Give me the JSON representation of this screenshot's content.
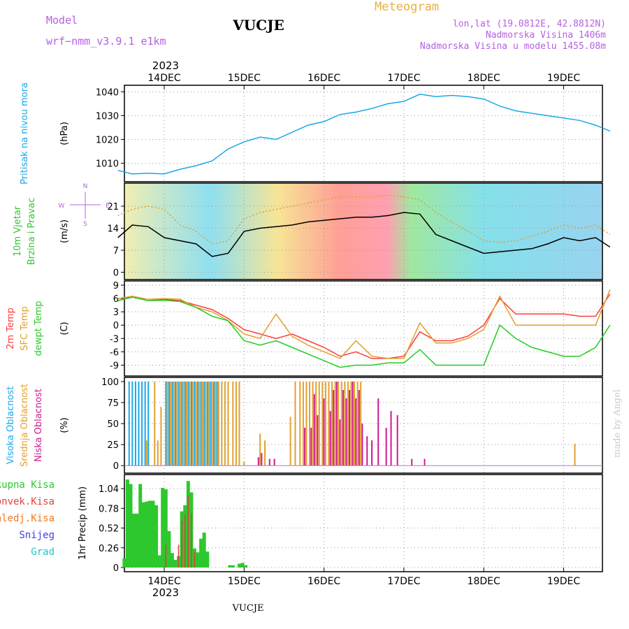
{
  "header": {
    "model_label": "Model",
    "model_name": "wrf−nmm_v3.9.1  e1km",
    "station": "VUCJE",
    "title": "Meteogram",
    "lonlat": "lon,lat (19.0812E, 42.8812N)",
    "elevation": "Nadmorska Visina 1406m",
    "model_elevation": "Nadmorska Visina u modelu 1455.08m",
    "year_top": "2023",
    "year_bottom": "2023",
    "footer_station": "VUCJE",
    "watermark": "made by Angel"
  },
  "colors": {
    "purple": "#b660e0",
    "gold": "#e8b040",
    "black": "#000000",
    "pressure": "#1aa8e8",
    "temp": "#ff3b3b",
    "sfc": "#e0a030",
    "dew": "#22cc22",
    "cloud_high": "#1aa8e8",
    "cloud_mid": "#e0a030",
    "cloud_low": "#d01890",
    "precip_total": "#2dc82d",
    "precip_conv": "#e04040",
    "precip_frz": "#f07820",
    "precip_snow": "#4040e0",
    "precip_grad": "#20c8c8"
  },
  "chart_data": [
    {
      "id": "pressure",
      "type": "line",
      "ylabel": "(hPa)",
      "side_labels": [
        "Pritisak na nivou mora"
      ],
      "x_ticks": [
        "14DEC",
        "15DEC",
        "16DEC",
        "17DEC",
        "18DEC",
        "19DEC"
      ],
      "y_ticks": [
        1010,
        1020,
        1030,
        1040
      ],
      "ylim": [
        1004,
        1041
      ],
      "x_days": [
        -0.58,
        -0.4,
        -0.2,
        0.0,
        0.2,
        0.4,
        0.6,
        0.8,
        1.0,
        1.2,
        1.4,
        1.6,
        1.8,
        2.0,
        2.2,
        2.4,
        2.6,
        2.8,
        3.0,
        3.2,
        3.4,
        3.6,
        3.8,
        4.0,
        4.2,
        4.4,
        4.6,
        4.8,
        5.0,
        5.2,
        5.4,
        5.58
      ],
      "series": [
        {
          "values": [
            1007,
            1005.5,
            1005.8,
            1005.5,
            1007.5,
            1009,
            1011,
            1016,
            1019,
            1021,
            1020,
            1023,
            1026,
            1027.5,
            1030.5,
            1031.5,
            1033,
            1035,
            1036,
            1039,
            1038,
            1038.5,
            1038,
            1037,
            1034,
            1032,
            1031,
            1030,
            1029,
            1028,
            1026,
            1023.5
          ]
        }
      ]
    },
    {
      "id": "wind",
      "type": "line",
      "ylabel": "(m/s)",
      "side_labels": [
        "10m Vjetar",
        "Brzina i Pravac"
      ],
      "compass": {
        "n": "N",
        "e": "E",
        "w": "W",
        "s": "S"
      },
      "y_ticks": [
        0,
        7,
        14,
        21
      ],
      "ylim": [
        -1,
        27
      ],
      "x_days": [
        -0.58,
        -0.4,
        -0.2,
        0.0,
        0.2,
        0.4,
        0.6,
        0.8,
        1.0,
        1.2,
        1.4,
        1.6,
        1.8,
        2.0,
        2.2,
        2.4,
        2.6,
        2.8,
        3.0,
        3.2,
        3.4,
        3.6,
        3.8,
        4.0,
        4.2,
        4.4,
        4.6,
        4.8,
        5.0,
        5.2,
        5.4,
        5.58
      ],
      "series": [
        {
          "values": [
            11,
            15,
            14.5,
            11,
            10,
            9,
            5,
            6,
            13,
            14,
            14.5,
            15,
            16,
            16.5,
            17,
            17.5,
            17.5,
            18,
            19,
            18.5,
            12,
            10,
            8,
            6,
            6.5,
            7,
            7.5,
            9,
            11,
            10,
            11,
            8
          ]
        },
        {
          "values": [
            18,
            20,
            21,
            20,
            15,
            13,
            9,
            10,
            17,
            19,
            20,
            21,
            22,
            23,
            24,
            24,
            24,
            24.5,
            24,
            23,
            19,
            16,
            13,
            10,
            9.5,
            10,
            11.5,
            13,
            15,
            14,
            15,
            12
          ]
        }
      ]
    },
    {
      "id": "temperature",
      "type": "line",
      "ylabel": "(C)",
      "side_labels": [
        "2m Temp",
        "SFC Temp",
        "dewpt Temp"
      ],
      "y_ticks": [
        -9,
        -6,
        -3,
        0,
        3,
        6,
        9
      ],
      "ylim": [
        -10.5,
        9
      ],
      "x_days": [
        -0.58,
        -0.4,
        -0.2,
        0.0,
        0.2,
        0.4,
        0.6,
        0.8,
        1.0,
        1.2,
        1.4,
        1.6,
        1.8,
        2.0,
        2.2,
        2.4,
        2.6,
        2.8,
        3.0,
        3.2,
        3.4,
        3.6,
        3.8,
        4.0,
        4.2,
        4.4,
        4.6,
        4.8,
        5.0,
        5.2,
        5.4,
        5.58
      ],
      "series": [
        {
          "name": "2m Temp",
          "values": [
            5.5,
            6.5,
            5.5,
            5.8,
            5.5,
            4.5,
            3.5,
            1.5,
            -1,
            -2,
            -3,
            -2,
            -3.5,
            -5,
            -7,
            -6,
            -7.5,
            -7.5,
            -7,
            -1.5,
            -3.5,
            -3.5,
            -2.5,
            0,
            6,
            2.5,
            2.5,
            2.5,
            2.5,
            2,
            2,
            7
          ]
        },
        {
          "name": "SFC Temp",
          "values": [
            6,
            6.5,
            5.8,
            6,
            5.8,
            4,
            3,
            1,
            -2,
            -3,
            2.5,
            -2.5,
            -4.5,
            -6,
            -7.5,
            -3.5,
            -7,
            -7.5,
            -7.5,
            0.5,
            -4,
            -4,
            -3,
            -1,
            6.5,
            0,
            0,
            0,
            0,
            0,
            0,
            8
          ]
        },
        {
          "name": "dewpt Temp",
          "values": [
            5.5,
            6.3,
            5.5,
            5.6,
            5.3,
            4,
            2,
            1,
            -3.5,
            -4.5,
            -3.5,
            -5,
            -6.5,
            -8,
            -9.5,
            -9,
            -9,
            -8.5,
            -8.5,
            -5.5,
            -9,
            -9,
            -9,
            -9,
            0,
            -3,
            -5,
            -6,
            -7,
            -7,
            -5,
            0
          ]
        }
      ]
    },
    {
      "id": "clouds",
      "type": "bar",
      "ylabel": "(%)",
      "side_labels": [
        "Visoka Oblacnost",
        "Srednja Oblacnost",
        "Niska Oblacnost"
      ],
      "y_ticks": [
        0,
        25,
        50,
        75,
        100
      ],
      "ylim": [
        -4,
        100
      ],
      "x_days": [
        -0.42,
        -0.38,
        -0.34,
        -0.3,
        -0.26,
        -0.22,
        -0.18,
        -0.12,
        -0.08,
        -0.04,
        0.04,
        0.08,
        0.12,
        0.16,
        0.2,
        0.24,
        0.28,
        0.32,
        0.36,
        0.4,
        0.44,
        0.48,
        0.52,
        0.56,
        0.6,
        0.64,
        0.68,
        0.72,
        0.76,
        0.8,
        0.86,
        0.9,
        0.94,
        1.0,
        1.16,
        1.2,
        1.26,
        1.3,
        1.36,
        1.46,
        1.58,
        1.64,
        1.7,
        1.74,
        1.78,
        1.82,
        1.86,
        1.9,
        1.94,
        1.98,
        2.02,
        2.06,
        2.1,
        2.14,
        2.18,
        2.22,
        2.26,
        2.3,
        2.34,
        2.38,
        2.42,
        2.46,
        2.52,
        2.58,
        2.66,
        2.76,
        2.82,
        2.9,
        3.08,
        3.24,
        3.76,
        3.82,
        5.14
      ],
      "series": [
        {
          "name": "Visoka Oblacnost",
          "values": [
            100,
            100,
            100,
            100,
            100,
            100,
            100,
            0,
            0,
            0,
            100,
            100,
            100,
            100,
            100,
            100,
            100,
            100,
            100,
            100,
            100,
            100,
            100,
            100,
            100,
            100,
            100,
            0,
            0,
            0,
            0,
            0,
            0,
            0,
            0,
            0,
            0,
            0,
            0,
            0,
            0,
            0,
            0,
            0,
            0,
            0,
            0,
            0,
            0,
            0,
            0,
            0,
            0,
            0,
            0,
            0,
            0,
            0,
            0,
            0,
            0,
            0,
            0,
            0,
            0,
            0,
            0,
            0,
            0,
            0,
            0,
            0,
            0
          ]
        },
        {
          "name": "Srednja Oblacnost",
          "values": [
            0,
            0,
            0,
            0,
            0,
            30,
            0,
            100,
            30,
            70,
            100,
            100,
            100,
            100,
            100,
            100,
            100,
            100,
            100,
            100,
            100,
            100,
            100,
            100,
            100,
            100,
            100,
            100,
            100,
            100,
            100,
            100,
            100,
            5,
            0,
            38,
            30,
            0,
            0,
            0,
            58,
            100,
            100,
            100,
            100,
            100,
            100,
            100,
            100,
            100,
            100,
            100,
            100,
            100,
            100,
            100,
            100,
            100,
            100,
            100,
            100,
            100,
            0,
            0,
            0,
            0,
            0,
            0,
            0,
            0,
            0,
            0,
            26
          ]
        },
        {
          "name": "Niska Oblacnost",
          "values": [
            0,
            0,
            0,
            0,
            0,
            0,
            0,
            0,
            0,
            0,
            0,
            0,
            0,
            0,
            0,
            0,
            0,
            0,
            0,
            0,
            0,
            0,
            0,
            0,
            0,
            0,
            0,
            0,
            0,
            0,
            0,
            0,
            0,
            0,
            10,
            15,
            0,
            8,
            8,
            0,
            0,
            0,
            0,
            45,
            0,
            45,
            85,
            60,
            0,
            80,
            0,
            65,
            90,
            100,
            55,
            90,
            80,
            90,
            100,
            80,
            90,
            50,
            35,
            30,
            80,
            45,
            65,
            60,
            8,
            8,
            0,
            0,
            0
          ]
        }
      ]
    },
    {
      "id": "precip",
      "type": "bar",
      "ylabel": "1hr Precip (mm)",
      "side_labels": [
        "Ukupna Kisa",
        "Konvek.Kisa",
        "Zaledj.Kisa",
        "Snijeg",
        "Grad"
      ],
      "y_ticks": [
        "0",
        "0.26",
        "0.52",
        "0.78",
        "1.04"
      ],
      "ylim": [
        0,
        1.17
      ],
      "x_days": [
        -0.5,
        -0.46,
        -0.42,
        -0.38,
        -0.34,
        -0.3,
        -0.26,
        -0.22,
        -0.18,
        -0.14,
        -0.1,
        -0.06,
        -0.02,
        0.02,
        0.06,
        0.1,
        0.14,
        0.18,
        0.22,
        0.26,
        0.3,
        0.34,
        0.38,
        0.42,
        0.46,
        0.5,
        0.54,
        0.58,
        0.62,
        0.66,
        0.82,
        0.86,
        0.94,
        0.98,
        1.02
      ],
      "series": [
        {
          "name": "Ukupna Kisa",
          "values": [
            0.12,
            1.16,
            1.1,
            0.71,
            0.71,
            1.1,
            0.86,
            0.87,
            0.88,
            0.88,
            0.82,
            0.16,
            1.05,
            1.03,
            0.48,
            0.19,
            0.1,
            0.15,
            0.74,
            0.82,
            1.14,
            0.99,
            0.25,
            0.2,
            0.38,
            0.46,
            0.21,
            0.0,
            0.0,
            0.0,
            0.03,
            0.03,
            0.05,
            0.06,
            0.03
          ]
        },
        {
          "name": "Konvek.Kisa",
          "values": [
            0,
            0,
            0,
            0,
            0,
            0,
            0,
            0,
            0,
            0,
            0,
            0,
            0,
            0.3,
            0,
            0,
            0,
            0.3,
            0.62,
            0.7,
            0.95,
            0.72,
            0.2,
            0,
            0,
            0,
            0,
            0,
            0,
            0,
            0,
            0,
            0,
            0,
            0
          ]
        },
        {
          "name": "Zaledj.Kisa",
          "values": [
            0,
            0,
            0,
            0,
            0,
            0,
            0,
            0,
            0,
            0,
            0,
            0,
            0,
            0,
            0,
            0,
            0,
            0,
            0,
            0,
            0,
            0,
            0,
            0,
            0,
            0,
            0,
            0,
            0,
            0,
            0,
            0,
            0,
            0,
            0
          ]
        },
        {
          "name": "Snijeg",
          "values": [
            0,
            0,
            0,
            0,
            0,
            0,
            0,
            0,
            0,
            0,
            0,
            0,
            0,
            0,
            0,
            0,
            0,
            0,
            0,
            0,
            0,
            0,
            0,
            0,
            0,
            0,
            0,
            0,
            0,
            0,
            0,
            0,
            0,
            0,
            0
          ]
        },
        {
          "name": "Grad",
          "values": [
            0,
            0,
            0,
            0,
            0,
            0,
            0,
            0,
            0,
            0,
            0,
            0,
            0,
            0,
            0,
            0,
            0,
            0,
            0,
            0,
            0,
            0,
            0,
            0,
            0,
            0,
            0,
            0,
            0,
            0,
            0,
            0,
            0,
            0,
            0
          ]
        }
      ]
    }
  ]
}
